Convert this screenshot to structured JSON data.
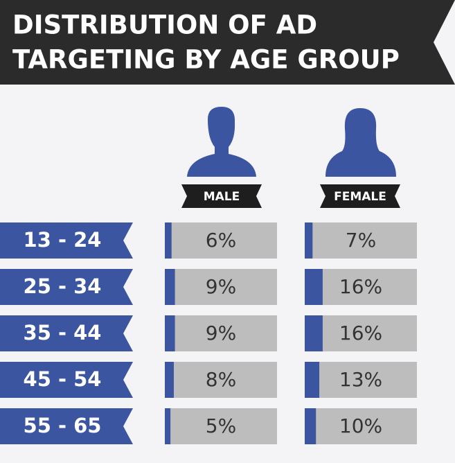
{
  "chart_data": {
    "type": "bar",
    "title": [
      "DISTRIBUTION OF AD",
      "TARGETING BY AGE GROUP"
    ],
    "categories": [
      "13 - 24",
      "25 - 34",
      "35 - 44",
      "45 - 54",
      "55 - 65"
    ],
    "series": [
      {
        "name": "MALE",
        "color": "#3b55a0",
        "values": [
          6,
          9,
          9,
          8,
          5
        ],
        "value_labels": [
          "6%",
          "9%",
          "9%",
          "8%",
          "5%"
        ]
      },
      {
        "name": "FEMALE",
        "color": "#3b55a0",
        "values": [
          7,
          16,
          16,
          13,
          10
        ],
        "value_labels": [
          "7%",
          "16%",
          "16%",
          "13%",
          "10%"
        ]
      }
    ],
    "xlim": [
      0,
      100
    ]
  }
}
